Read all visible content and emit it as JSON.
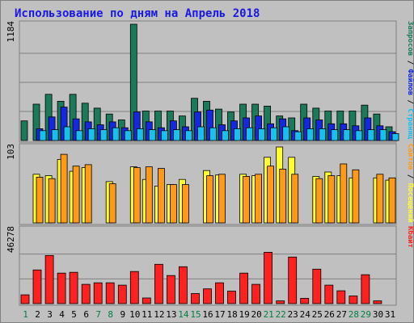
{
  "title": "Использование по дням на Апрель 2018",
  "colors": {
    "background": "#c0c0c0",
    "title": "#1818e0",
    "weekend_tick": "#008040",
    "weekday_tick": "#000000",
    "requests": "#1a7a5a",
    "files": "#1428e0",
    "pages": "#18c0f0",
    "visits": "#ffff30",
    "sites": "#ff9a18",
    "kbytes": "#ff2020"
  },
  "chart_data": [
    {
      "type": "bar",
      "panel": "hits",
      "ymax_label": "1184",
      "ylim": [
        0,
        1184
      ],
      "categories": [
        "1",
        "2",
        "3",
        "4",
        "5",
        "6",
        "7",
        "8",
        "9",
        "10",
        "11",
        "12",
        "13",
        "14",
        "15",
        "16",
        "17",
        "18",
        "19",
        "20",
        "21",
        "22",
        "23",
        "24",
        "25",
        "26",
        "27",
        "28",
        "29",
        "30",
        "31"
      ],
      "weekend_days": [
        "1",
        "7",
        "8",
        "14",
        "15",
        "21",
        "22",
        "28",
        "29"
      ],
      "right_label": [
        {
          "text": "Запросов",
          "color": "#1a7a5a"
        },
        {
          "text": " / ",
          "color": "#000000"
        },
        {
          "text": "Файлов",
          "color": "#1428e0"
        },
        {
          "text": " / ",
          "color": "#000000"
        },
        {
          "text": "Страниц",
          "color": "#18c0f0"
        }
      ],
      "series": [
        {
          "name": "Запросов",
          "color": "#1a7a5a",
          "values": [
            200,
            370,
            470,
            400,
            470,
            380,
            330,
            270,
            210,
            1184,
            300,
            300,
            300,
            250,
            430,
            400,
            320,
            290,
            370,
            370,
            350,
            250,
            230,
            370,
            330,
            300,
            300,
            300,
            360,
            270,
            140
          ]
        },
        {
          "name": "Файлов",
          "color": "#1428e0",
          "values": [
            null,
            120,
            240,
            340,
            220,
            190,
            160,
            190,
            130,
            290,
            190,
            130,
            200,
            140,
            290,
            310,
            160,
            200,
            230,
            250,
            170,
            220,
            100,
            230,
            210,
            170,
            170,
            150,
            230,
            150,
            90
          ]
        },
        {
          "name": "Страниц",
          "color": "#18c0f0",
          "values": [
            null,
            100,
            110,
            140,
            100,
            120,
            110,
            130,
            100,
            120,
            110,
            100,
            110,
            100,
            140,
            130,
            100,
            120,
            130,
            120,
            130,
            140,
            90,
            120,
            120,
            110,
            110,
            100,
            110,
            110,
            70
          ]
        }
      ]
    },
    {
      "type": "bar",
      "panel": "visits",
      "ymax_label": "103",
      "ylim": [
        0,
        103
      ],
      "right_label": [
        {
          "text": "Сайтов",
          "color": "#ff9a18"
        },
        {
          "text": " / ",
          "color": "#000000"
        },
        {
          "text": "Посещений",
          "color": "#ffff30"
        }
      ],
      "series": [
        {
          "name": "Посещений",
          "color": "#ffff30",
          "values": [
            null,
            66,
            64,
            86,
            70,
            75,
            null,
            56,
            null,
            76,
            59,
            50,
            52,
            59,
            null,
            71,
            65,
            null,
            66,
            64,
            89,
            103,
            89,
            null,
            63,
            69,
            64,
            61,
            null,
            61,
            58
          ]
        },
        {
          "name": "Сайтов",
          "color": "#ff9a18",
          "values": [
            null,
            62,
            60,
            93,
            77,
            79,
            null,
            53,
            null,
            75,
            76,
            74,
            52,
            52,
            null,
            64,
            66,
            null,
            63,
            66,
            77,
            73,
            66,
            null,
            60,
            64,
            80,
            72,
            null,
            66,
            61
          ]
        }
      ]
    },
    {
      "type": "bar",
      "panel": "kbytes",
      "ymax_label": "46278",
      "ylim": [
        0,
        46278
      ],
      "right_label": [
        {
          "text": "Кбайт",
          "color": "#ff2020"
        }
      ],
      "series": [
        {
          "name": "Кбайт",
          "color": "#ff2020",
          "values": [
            5500,
            21000,
            30000,
            19000,
            19500,
            12000,
            13000,
            13000,
            11500,
            20000,
            3500,
            24500,
            17500,
            23000,
            6300,
            9200,
            13000,
            7800,
            19000,
            12000,
            32000,
            1700,
            29000,
            3300,
            21500,
            11500,
            8000,
            4800,
            18000,
            1700,
            null
          ]
        }
      ]
    }
  ]
}
